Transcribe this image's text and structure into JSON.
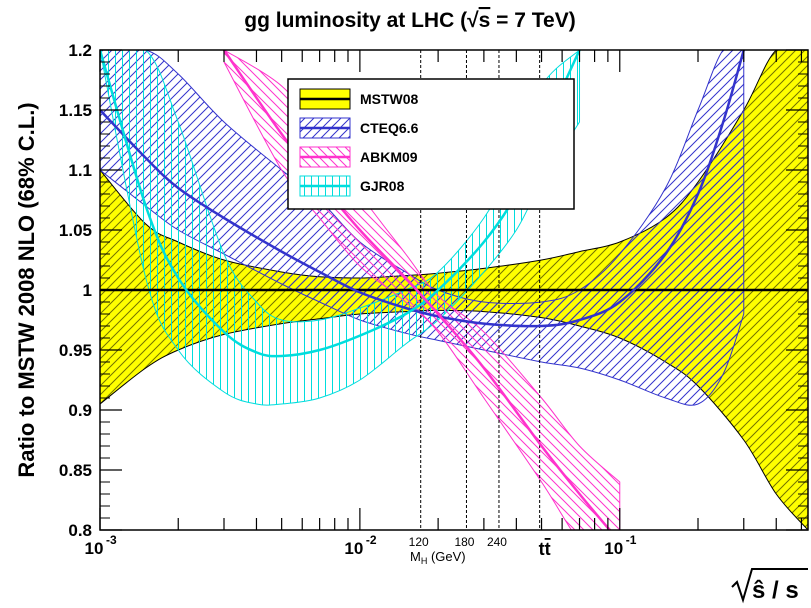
{
  "chart_data": {
    "type": "line",
    "title_parts": [
      "gg luminosity at LHC (",
      "√",
      "s",
      " = 7 TeV)"
    ],
    "ylabel": "Ratio to MSTW 2008 NLO (68% C.L.)",
    "xlabel_parts": [
      "√",
      "ŝ / s"
    ],
    "xscale": "log",
    "xlim": [
      0.001,
      0.53
    ],
    "ylim": [
      0.8,
      1.2
    ],
    "xticks": [
      {
        "value": 0.001,
        "label": "10",
        "exp": "-3"
      },
      {
        "value": 0.01,
        "label": "10",
        "exp": "-2"
      },
      {
        "value": 0.1,
        "label": "10",
        "exp": "-1"
      }
    ],
    "yticks": [
      {
        "value": 0.8,
        "label": "0.8"
      },
      {
        "value": 0.85,
        "label": "0.85"
      },
      {
        "value": 0.9,
        "label": "0.9"
      },
      {
        "value": 0.95,
        "label": "0.95"
      },
      {
        "value": 1.0,
        "label": "1"
      },
      {
        "value": 1.05,
        "label": "1.05"
      },
      {
        "value": 1.1,
        "label": "1.1"
      },
      {
        "value": 1.15,
        "label": "1.15"
      },
      {
        "value": 1.2,
        "label": "1.2"
      }
    ],
    "mass_markers": {
      "lines": [
        0.01714,
        0.02571,
        0.03429,
        0.04917
      ],
      "labels": [
        {
          "x": 0.01714,
          "text": "120"
        },
        {
          "x": 0.02571,
          "text": "180"
        },
        {
          "x": 0.03429,
          "text": "240"
        }
      ],
      "axis_label": [
        "M",
        "H",
        " (GeV)"
      ],
      "ttbar": {
        "x": 0.04917,
        "text": "tt",
        "over": "t"
      }
    },
    "legend": {
      "placement": "top-center",
      "entries": [
        "MSTW08",
        "CTEQ6.6",
        "ABKM09",
        "GJR08"
      ]
    },
    "series": [
      {
        "name": "MSTW08",
        "color": "#ffff00",
        "edge": "#000000",
        "x": [
          0.001,
          0.0015,
          0.002,
          0.003,
          0.005,
          0.007,
          0.01,
          0.015,
          0.02,
          0.03,
          0.05,
          0.07,
          0.1,
          0.15,
          0.2,
          0.3,
          0.4,
          0.53
        ],
        "central": [
          1.0,
          1.0,
          1.0,
          1.0,
          1.0,
          1.0,
          1.0,
          1.0,
          1.0,
          1.0,
          1.0,
          1.0,
          1.0,
          1.0,
          1.0,
          1.0,
          1.0,
          1.0
        ],
        "upper": [
          1.1,
          1.055,
          1.04,
          1.025,
          1.015,
          1.011,
          1.01,
          1.012,
          1.014,
          1.018,
          1.025,
          1.032,
          1.04,
          1.06,
          1.09,
          1.15,
          1.2,
          1.2
        ],
        "lower": [
          0.905,
          0.935,
          0.95,
          0.963,
          0.972,
          0.976,
          0.98,
          0.982,
          0.983,
          0.982,
          0.977,
          0.97,
          0.96,
          0.94,
          0.92,
          0.875,
          0.83,
          0.8
        ]
      },
      {
        "name": "CTEQ6.6",
        "color": "#3333cc",
        "x": [
          0.001,
          0.0015,
          0.002,
          0.003,
          0.005,
          0.007,
          0.01,
          0.015,
          0.02,
          0.03,
          0.05,
          0.07,
          0.1,
          0.15,
          0.2,
          0.25,
          0.3
        ],
        "central": [
          1.15,
          1.11,
          1.085,
          1.06,
          1.032,
          1.015,
          0.998,
          0.985,
          0.978,
          0.972,
          0.97,
          0.975,
          0.99,
          1.03,
          1.08,
          1.14,
          1.2
        ],
        "upper": [
          1.2,
          1.2,
          1.18,
          1.14,
          1.1,
          1.075,
          1.04,
          1.015,
          1.0,
          0.99,
          0.99,
          1.0,
          1.03,
          1.085,
          1.15,
          1.2,
          1.2
        ],
        "lower": [
          1.1,
          1.07,
          1.05,
          1.03,
          1.005,
          0.99,
          0.975,
          0.964,
          0.958,
          0.95,
          0.94,
          0.935,
          0.925,
          0.91,
          0.905,
          0.93,
          0.98
        ]
      },
      {
        "name": "ABKM09",
        "color": "#ff33cc",
        "x": [
          0.003,
          0.005,
          0.007,
          0.01,
          0.015,
          0.02,
          0.03,
          0.05,
          0.07,
          0.1
        ],
        "central": [
          1.2,
          1.13,
          1.09,
          1.05,
          1.01,
          0.98,
          0.935,
          0.87,
          0.83,
          0.79
        ],
        "upper": [
          1.2,
          1.17,
          1.13,
          1.08,
          1.03,
          0.995,
          0.965,
          0.91,
          0.87,
          0.84
        ],
        "lower": [
          1.19,
          1.1,
          1.06,
          1.02,
          0.99,
          0.965,
          0.91,
          0.84,
          0.79,
          0.75
        ]
      },
      {
        "name": "GJR08",
        "color": "#00dddd",
        "x": [
          0.001,
          0.0015,
          0.002,
          0.003,
          0.004,
          0.005,
          0.007,
          0.01,
          0.015,
          0.02,
          0.03,
          0.04,
          0.05,
          0.07
        ],
        "central": [
          1.2,
          1.07,
          1.01,
          0.965,
          0.948,
          0.945,
          0.95,
          0.962,
          0.98,
          1.0,
          1.04,
          1.08,
          1.13,
          1.2
        ],
        "upper": [
          1.2,
          1.2,
          1.14,
          1.03,
          0.99,
          0.975,
          0.975,
          0.985,
          1.0,
          1.015,
          1.06,
          1.11,
          1.17,
          1.2
        ],
        "lower": [
          1.2,
          1.01,
          0.95,
          0.915,
          0.905,
          0.905,
          0.91,
          0.925,
          0.955,
          0.975,
          1.015,
          1.05,
          1.09,
          1.14
        ]
      }
    ]
  }
}
